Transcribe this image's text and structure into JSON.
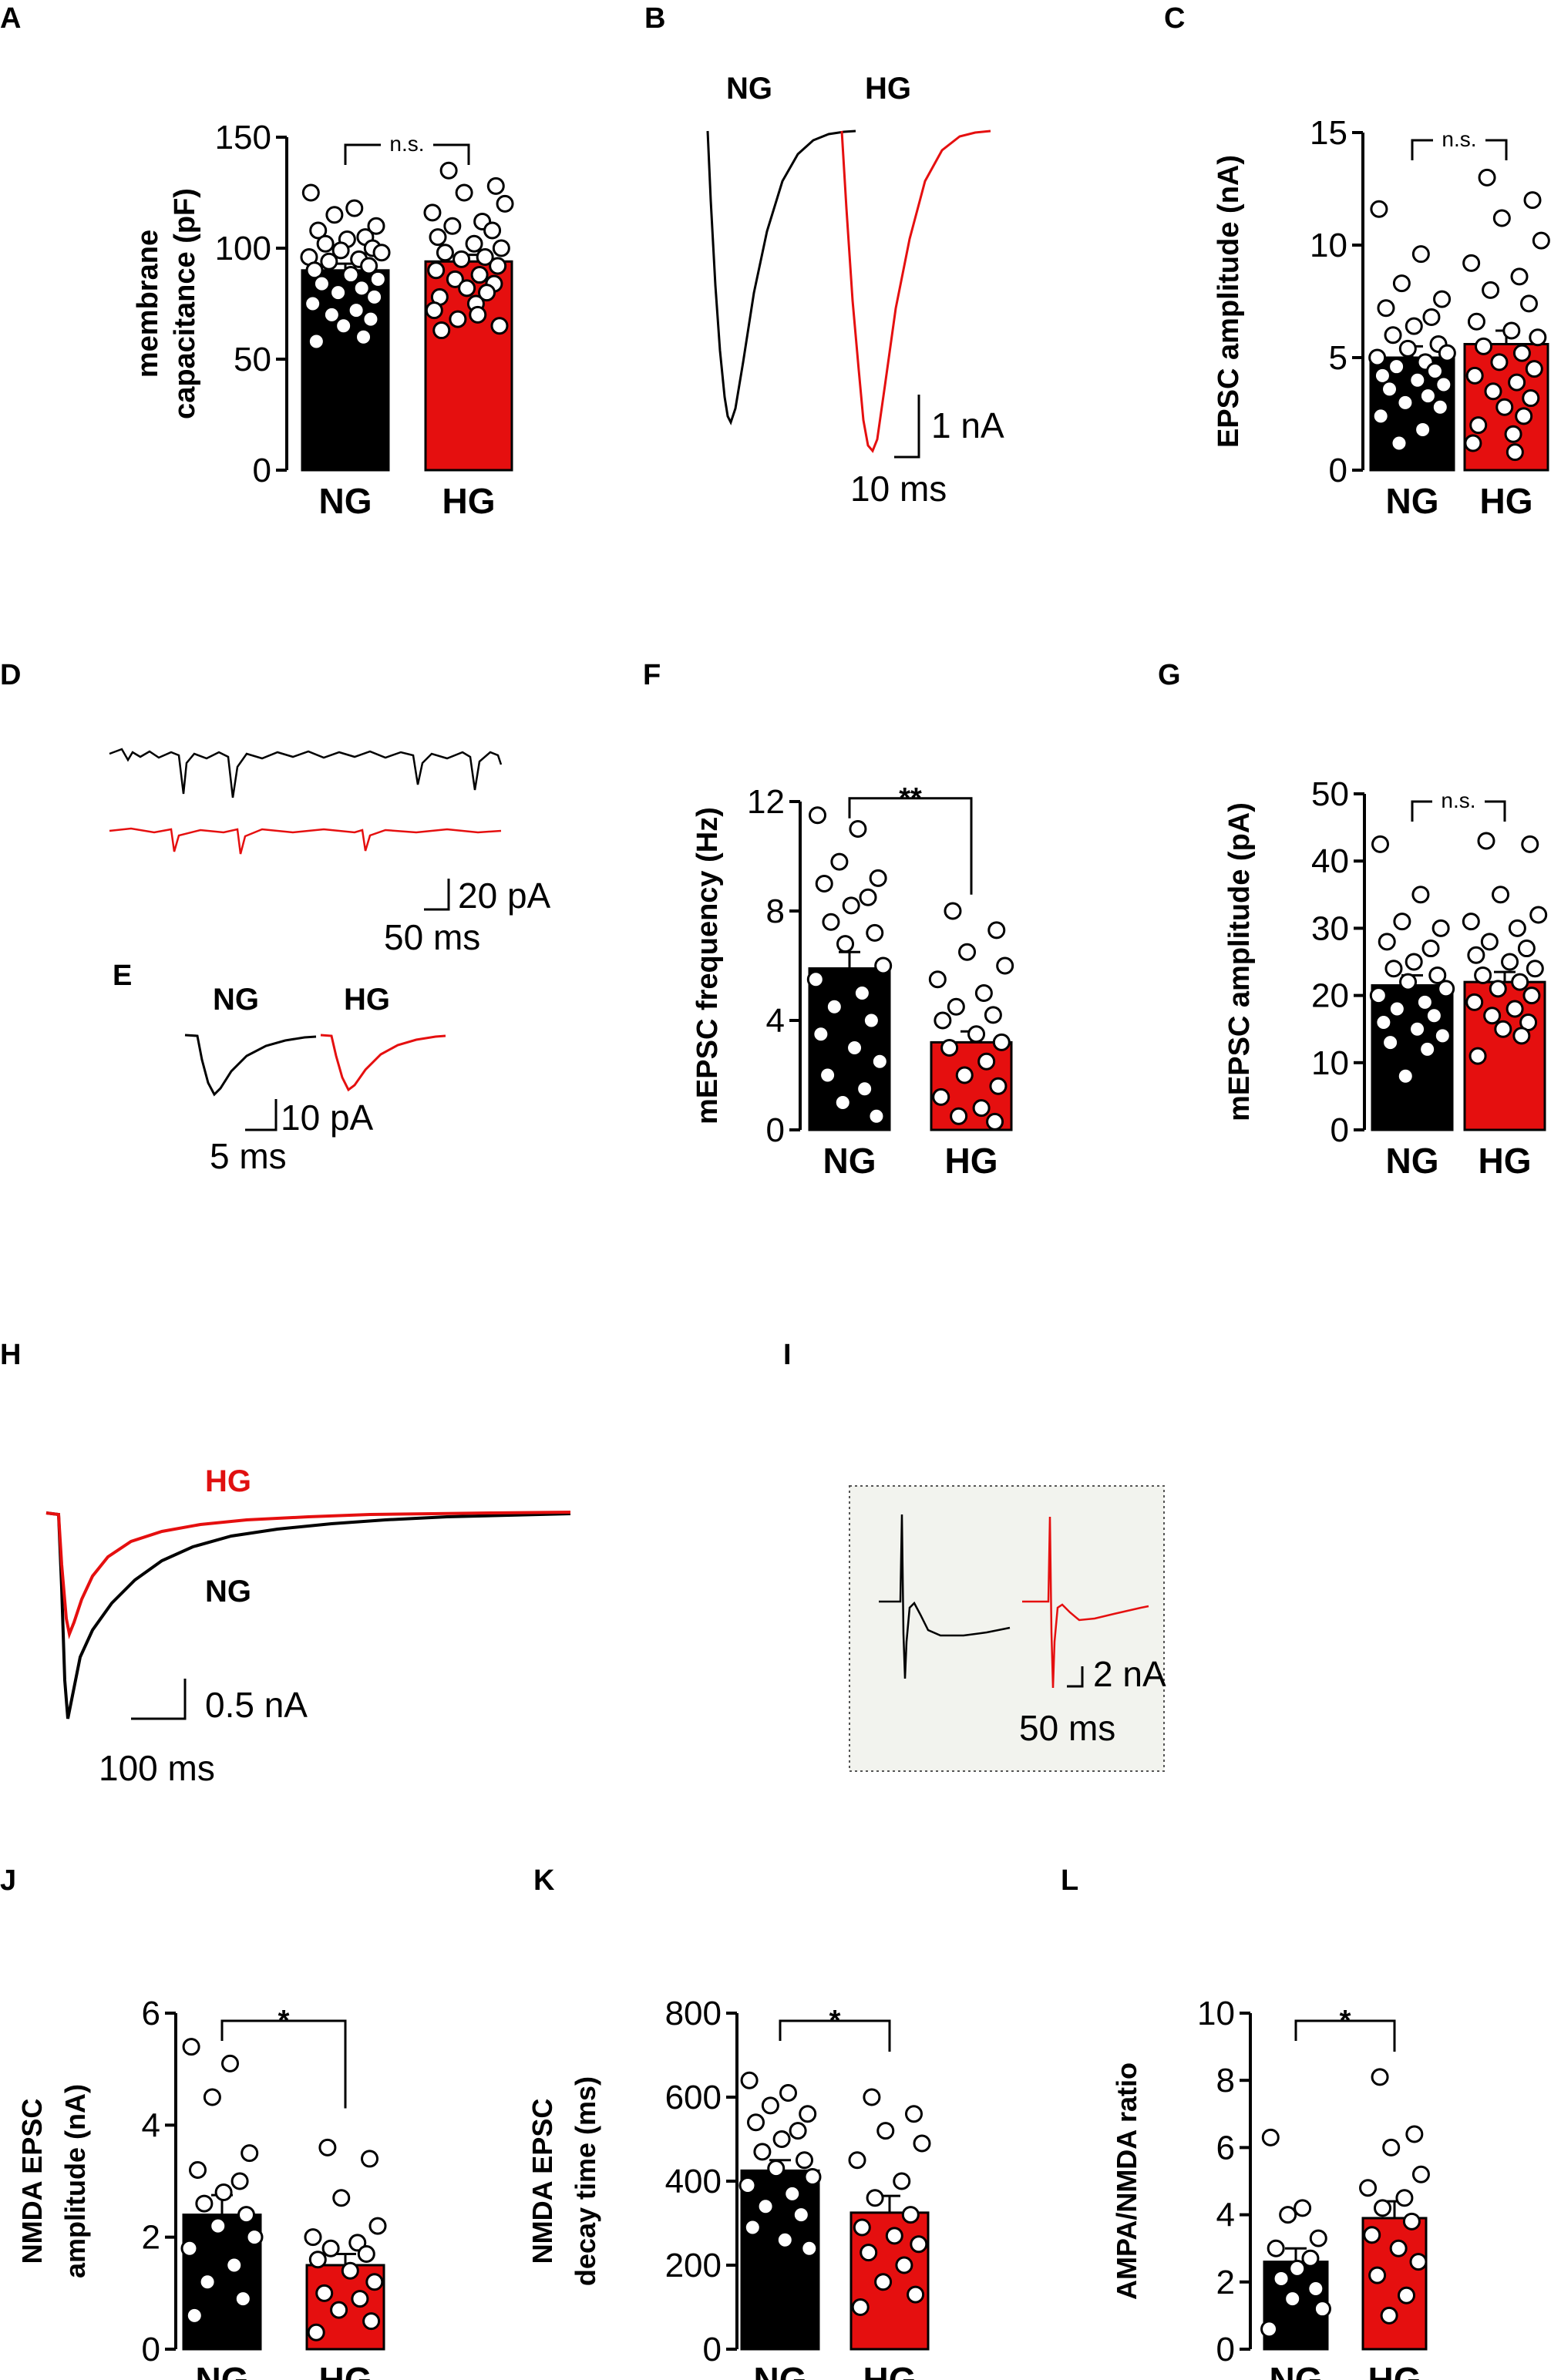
{
  "chart_data": [
    {
      "id": "A",
      "type": "bar",
      "panel_label": "A",
      "ylabel_lines": [
        "membrane",
        "capacitance (pF)"
      ],
      "categories": [
        "NG",
        "HG"
      ],
      "values": [
        90,
        94
      ],
      "sem": [
        3,
        3
      ],
      "ylim": [
        0,
        150
      ],
      "yticks": [
        "0",
        "50",
        "100",
        "150"
      ],
      "ytick_values": [
        0,
        50,
        100,
        150
      ],
      "significance": "n.s.",
      "points": [
        [
          125,
          118,
          115,
          110,
          108,
          105,
          104,
          102,
          100,
          99,
          98,
          96,
          95,
          94,
          92,
          90,
          88,
          86,
          84,
          82,
          80,
          78,
          75,
          72,
          70,
          68,
          65,
          60,
          58
        ],
        [
          135,
          128,
          125,
          120,
          116,
          112,
          110,
          108,
          105,
          102,
          100,
          98,
          96,
          95,
          92,
          90,
          88,
          86,
          84,
          82,
          80,
          78,
          75,
          72,
          70,
          68,
          65,
          63
        ]
      ]
    },
    {
      "id": "C",
      "type": "bar",
      "panel_label": "C",
      "ylabel_lines": [
        "EPSC amplitude (nA)"
      ],
      "categories": [
        "NG",
        "HG"
      ],
      "values": [
        5.0,
        5.6
      ],
      "sem": [
        0.5,
        0.6
      ],
      "ylim": [
        0,
        15
      ],
      "yticks": [
        "0",
        "5",
        "10",
        "15"
      ],
      "ytick_values": [
        0,
        5,
        10,
        15
      ],
      "significance": "n.s.",
      "points": [
        [
          11.6,
          9.6,
          8.3,
          7.6,
          7.2,
          6.8,
          6.4,
          6.0,
          5.6,
          5.4,
          5.2,
          5.0,
          4.8,
          4.6,
          4.4,
          4.2,
          4.0,
          3.8,
          3.6,
          3.3,
          3.0,
          2.8,
          2.4,
          1.8,
          1.2
        ],
        [
          13.0,
          12.0,
          11.2,
          10.2,
          9.2,
          8.6,
          8.0,
          7.4,
          6.6,
          6.2,
          5.9,
          5.5,
          5.2,
          4.8,
          4.5,
          4.2,
          3.9,
          3.5,
          3.2,
          2.8,
          2.4,
          2.0,
          1.6,
          1.2,
          0.8
        ]
      ]
    },
    {
      "id": "F",
      "type": "bar",
      "panel_label": "F",
      "ylabel_lines": [
        "mEPSC frequency (Hz)"
      ],
      "categories": [
        "NG",
        "HG"
      ],
      "values": [
        5.9,
        3.2
      ],
      "sem": [
        0.6,
        0.4
      ],
      "ylim": [
        0,
        12
      ],
      "yticks": [
        "0",
        "4",
        "8",
        "12"
      ],
      "ytick_values": [
        0,
        4,
        8,
        12
      ],
      "significance": "**",
      "points": [
        [
          11.5,
          11.0,
          9.8,
          9.2,
          9.0,
          8.5,
          8.2,
          7.6,
          7.2,
          6.8,
          6.0,
          5.5,
          5.0,
          4.5,
          4.0,
          3.5,
          3.0,
          2.5,
          2.0,
          1.5,
          1.0,
          0.5
        ],
        [
          8.0,
          7.3,
          6.5,
          6.0,
          5.5,
          5.0,
          4.5,
          4.2,
          4.0,
          3.5,
          3.2,
          3.0,
          2.5,
          2.0,
          1.6,
          1.2,
          0.8,
          0.5,
          0.3
        ]
      ]
    },
    {
      "id": "G",
      "type": "bar",
      "panel_label": "G",
      "ylabel_lines": [
        "mEPSC amplitude (pA)"
      ],
      "categories": [
        "NG",
        "HG"
      ],
      "values": [
        21.5,
        22.0
      ],
      "sem": [
        1.5,
        1.5
      ],
      "ylim": [
        0,
        50
      ],
      "yticks": [
        "0",
        "10",
        "20",
        "30",
        "40",
        "50"
      ],
      "ytick_values": [
        0,
        10,
        20,
        30,
        40,
        50
      ],
      "significance": "n.s.",
      "points": [
        [
          42.5,
          35,
          31,
          30,
          28,
          27,
          25,
          24,
          23,
          22,
          21,
          20,
          19,
          18,
          17,
          16,
          15,
          14,
          13,
          12,
          8
        ],
        [
          43,
          42.5,
          35,
          32,
          31,
          30,
          28,
          27,
          26,
          25,
          24,
          23,
          22,
          21,
          20,
          19,
          18,
          17,
          16,
          15,
          14,
          11
        ]
      ]
    },
    {
      "id": "J",
      "type": "bar",
      "panel_label": "J",
      "ylabel_lines": [
        "NMDA EPSC",
        "amplitude (nA)"
      ],
      "categories": [
        "NG",
        "HG"
      ],
      "values": [
        2.4,
        1.5
      ],
      "sem": [
        0.35,
        0.2
      ],
      "ylim": [
        0,
        6
      ],
      "yticks": [
        "0",
        "2",
        "4",
        "6"
      ],
      "ytick_values": [
        0,
        2,
        4,
        6
      ],
      "significance": "*",
      "points": [
        [
          5.4,
          5.1,
          4.5,
          3.5,
          3.2,
          3.0,
          2.8,
          2.6,
          2.4,
          2.2,
          2.0,
          1.8,
          1.5,
          1.2,
          0.9,
          0.6
        ],
        [
          3.6,
          3.4,
          2.7,
          2.2,
          2.0,
          1.9,
          1.8,
          1.7,
          1.6,
          1.4,
          1.2,
          1.0,
          0.9,
          0.7,
          0.5,
          0.3
        ]
      ]
    },
    {
      "id": "K",
      "type": "bar",
      "panel_label": "K",
      "ylabel_lines": [
        "NMDA EPSC",
        "decay time (ms)"
      ],
      "categories": [
        "NG",
        "HG"
      ],
      "values": [
        425,
        325
      ],
      "sem": [
        25,
        40
      ],
      "ylim": [
        0,
        800
      ],
      "yticks": [
        "0",
        "200",
        "400",
        "600",
        "800"
      ],
      "ytick_values": [
        0,
        200,
        400,
        600,
        800
      ],
      "significance": "*",
      "points": [
        [
          640,
          610,
          580,
          560,
          540,
          520,
          500,
          470,
          450,
          430,
          410,
          390,
          370,
          340,
          320,
          290,
          260,
          240
        ],
        [
          600,
          560,
          520,
          490,
          450,
          400,
          360,
          320,
          290,
          270,
          250,
          230,
          200,
          160,
          130,
          100
        ]
      ]
    },
    {
      "id": "L",
      "type": "bar",
      "panel_label": "L",
      "ylabel_lines": [
        "AMPA/NMDA ratio"
      ],
      "categories": [
        "NG",
        "HG"
      ],
      "values": [
        2.6,
        3.9
      ],
      "sem": [
        0.4,
        0.5
      ],
      "ylim": [
        0,
        10
      ],
      "yticks": [
        "0",
        "2",
        "4",
        "6",
        "8",
        "10"
      ],
      "ytick_values": [
        0,
        2,
        4,
        6,
        8,
        10
      ],
      "significance": "*",
      "points": [
        [
          6.3,
          4.2,
          4.0,
          3.3,
          3.0,
          2.7,
          2.4,
          2.1,
          1.8,
          1.5,
          1.2,
          0.6
        ],
        [
          8.1,
          6.4,
          6.0,
          5.2,
          4.8,
          4.5,
          4.2,
          3.8,
          3.4,
          3.0,
          2.6,
          2.2,
          1.6,
          1.0
        ]
      ]
    }
  ],
  "traces": {
    "B": {
      "panel_label": "B",
      "label_ng": "NG",
      "label_hg": "HG",
      "scale_y": "1 nA",
      "scale_x": "10 ms"
    },
    "D": {
      "panel_label": "D",
      "scale_y": "20 pA",
      "scale_x": "50 ms"
    },
    "E": {
      "panel_label": "E",
      "label_ng": "NG",
      "label_hg": "HG",
      "scale_y": "10 pA",
      "scale_x": "5 ms"
    },
    "H": {
      "panel_label": "H",
      "label_hg": "HG",
      "label_ng": "NG",
      "scale_y": "0.5 nA",
      "scale_x": "100 ms"
    },
    "I": {
      "panel_label": "I",
      "scale_y": "2 nA",
      "scale_x": "50 ms"
    }
  },
  "colors": {
    "ng": "#000000",
    "hg": "#e50f0f",
    "hg_label": "#e01010",
    "inset_bg": "#f2f3ee"
  }
}
